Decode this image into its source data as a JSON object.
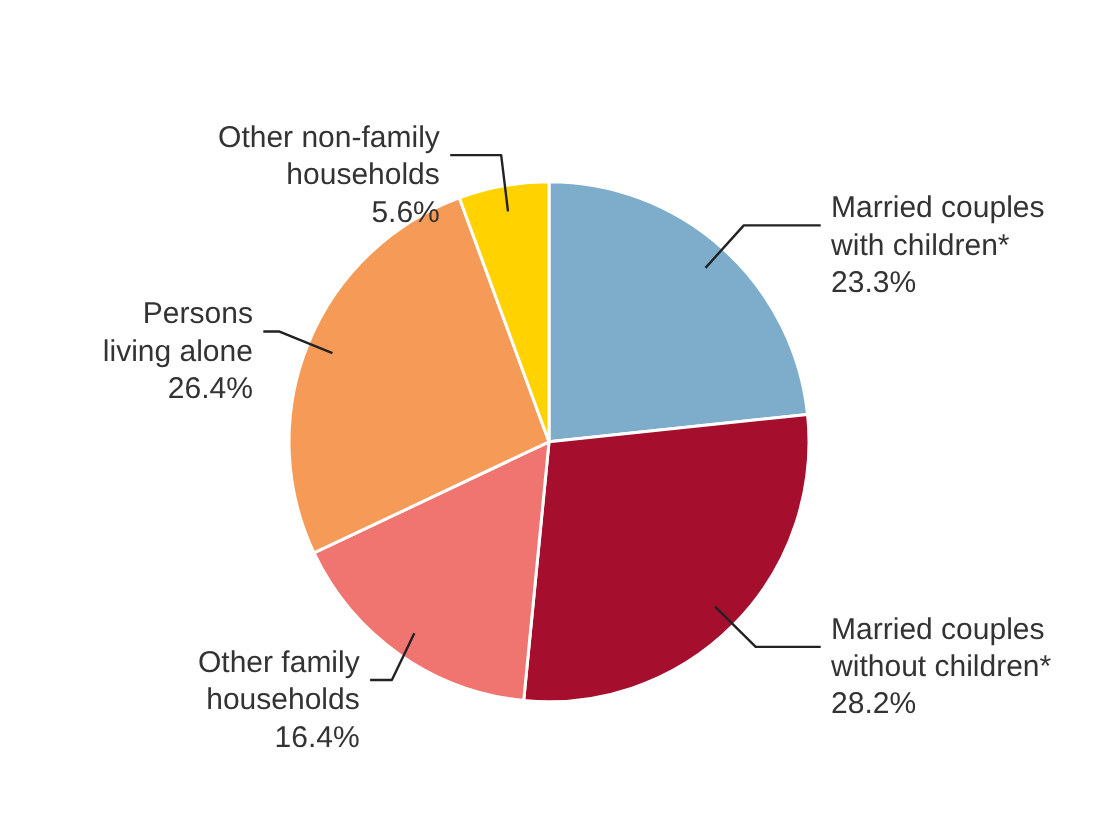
{
  "chart_data": {
    "type": "pie",
    "categories": [
      "Married couples\nwith children*",
      "Married couples\nwithout children*",
      "Other family\nhouseholds",
      "Persons\nliving alone",
      "Other non-family\nhouseholds"
    ],
    "values": [
      23.3,
      28.2,
      16.4,
      26.4,
      5.6
    ],
    "value_labels": [
      "23.3%",
      "28.2%",
      "16.4%",
      "26.4%",
      "5.6%"
    ],
    "colors": [
      "#7eadcc",
      "#a50e2c",
      "#f07470",
      "#f69a58",
      "#ffd200"
    ]
  }
}
